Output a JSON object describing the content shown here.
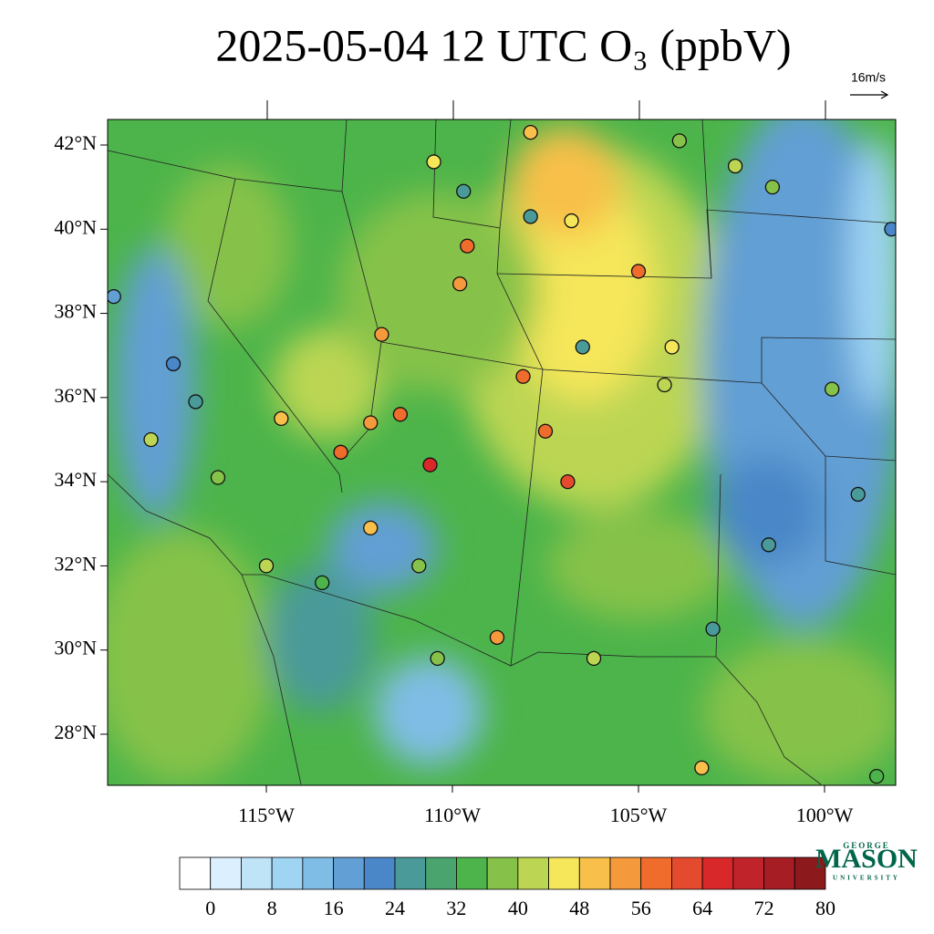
{
  "title": "2025-05-04 12 UTC O₃ (ppbV)",
  "wind_reference": "16m/s",
  "latitude_ticks": [
    {
      "value": 28,
      "label": "28°N"
    },
    {
      "value": 30,
      "label": "30°N"
    },
    {
      "value": 32,
      "label": "32°N"
    },
    {
      "value": 34,
      "label": "34°N"
    },
    {
      "value": 36,
      "label": "36°N"
    },
    {
      "value": 38,
      "label": "38°N"
    },
    {
      "value": 40,
      "label": "40°N"
    },
    {
      "value": 42,
      "label": "42°N"
    }
  ],
  "longitude_ticks": [
    {
      "value": -115,
      "label": "115°W"
    },
    {
      "value": -110,
      "label": "110°W"
    },
    {
      "value": -105,
      "label": "105°W"
    },
    {
      "value": -100,
      "label": "100°W"
    }
  ],
  "colorbar": {
    "step": 4,
    "colors": [
      "#ffffff",
      "#dcefff",
      "#bfe3f7",
      "#9fd4f3",
      "#80bde6",
      "#629fd4",
      "#4a87c8",
      "#4a9a99",
      "#49a46e",
      "#4cb44a",
      "#86c24a",
      "#bcd653",
      "#f5e65a",
      "#f8c04a",
      "#f59a3c",
      "#ef6c2c",
      "#e44a2e",
      "#d8282a",
      "#c0232a",
      "#a61d24",
      "#8c1a1d"
    ],
    "ticks": [
      0,
      8,
      16,
      24,
      32,
      40,
      48,
      56,
      64,
      72,
      80
    ]
  },
  "stations": {
    "lon": [
      -107.9,
      -110.5,
      -109.7,
      -107.9,
      -106.8,
      -109.6,
      -109.8,
      -105.0,
      -108.1,
      -107.5,
      -106.9,
      -110.6,
      -111.4,
      -112.2,
      -113.0,
      -114.6,
      -111.9,
      -112.2,
      -108.8,
      -103.3,
      -106.5,
      -103.9,
      -102.4,
      -101.4,
      -98.2,
      -119.1,
      -117.5,
      -116.9,
      -118.1,
      -116.3,
      -115.0,
      -113.5,
      -110.9,
      -110.4,
      -106.2,
      -103.0,
      -99.8,
      -99.1,
      -101.5,
      -98.6,
      -104.1,
      -104.3
    ],
    "lat": [
      42.3,
      41.6,
      40.9,
      40.3,
      40.2,
      39.6,
      38.7,
      39.0,
      36.5,
      35.2,
      34.0,
      34.4,
      35.6,
      35.4,
      34.7,
      35.5,
      37.5,
      32.9,
      30.3,
      27.2,
      37.2,
      42.1,
      41.5,
      41.0,
      40.0,
      38.4,
      36.8,
      35.9,
      35.0,
      34.1,
      32.0,
      31.6,
      32.0,
      29.8,
      29.8,
      30.5,
      36.2,
      33.7,
      32.5,
      27.0,
      37.2,
      36.3
    ],
    "ozone": [
      50,
      46,
      24,
      26,
      46,
      56,
      54,
      58,
      58,
      58,
      62,
      64,
      58,
      54,
      56,
      48,
      52,
      48,
      52,
      48,
      26,
      36,
      40,
      38,
      22,
      16,
      22,
      24,
      40,
      36,
      40,
      32,
      38,
      36,
      40,
      26,
      36,
      24,
      26,
      32,
      46,
      40
    ]
  },
  "logo": {
    "line1": "GEORGE",
    "line2": "MASON",
    "line3": "UNIVERSITY"
  }
}
